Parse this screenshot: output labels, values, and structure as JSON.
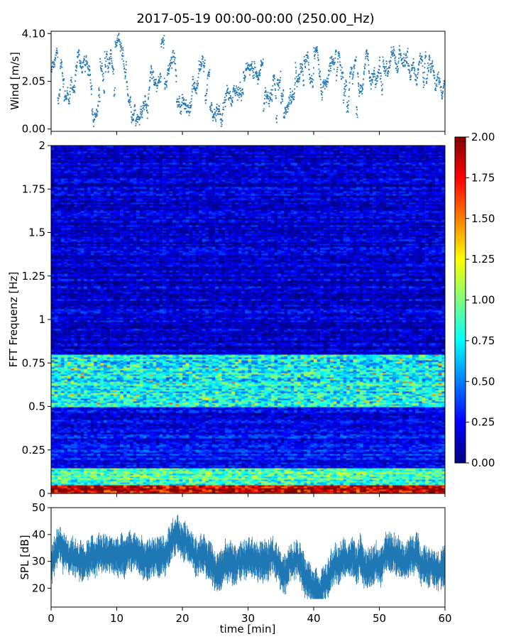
{
  "title": "2017-05-19 00:00-00:00 (250.00_Hz)",
  "chart_data": [
    {
      "type": "scatter",
      "name": "wind-panel",
      "ylabel": "Wind [m/s]",
      "xlim": [
        0,
        60
      ],
      "ylim": [
        -0.1,
        4.2
      ],
      "yticks": [
        0.0,
        2.05,
        4.1
      ],
      "ytick_labels": [
        "0.00",
        "2.05",
        "4.10"
      ],
      "x_unit": "min",
      "samples": 1800,
      "y_range": [
        0.0,
        4.1
      ],
      "series_color": "#1f77b4"
    },
    {
      "type": "heatmap",
      "name": "spectrogram-panel",
      "ylabel": "FFT Frequenz [Hz]",
      "xlim": [
        0,
        60
      ],
      "ylim": [
        0,
        2
      ],
      "yticks": [
        0,
        0.25,
        0.5,
        0.75,
        1,
        1.25,
        1.5,
        1.75,
        2
      ],
      "ytick_labels": [
        "0",
        "0.25",
        "0.5",
        "0.75",
        "1",
        "1.25",
        "1.5",
        "1.75",
        "2"
      ],
      "colormap": "jet",
      "color_range": [
        0.0,
        2.0
      ],
      "colorbar_ticks": [
        "0.00",
        "0.25",
        "0.50",
        "0.75",
        "1.00",
        "1.25",
        "1.50",
        "1.75",
        "2.00"
      ],
      "features": [
        {
          "freq_range": [
            0.0,
            0.05
          ],
          "level": 1.8
        },
        {
          "freq_range": [
            0.05,
            0.15
          ],
          "level": 0.9
        },
        {
          "freq_range": [
            0.5,
            0.8
          ],
          "level": 0.75
        },
        {
          "freq_range": [
            1.0,
            2.0
          ],
          "level": 0.15
        }
      ]
    },
    {
      "type": "area",
      "name": "spl-panel",
      "ylabel": "SPL [dB]",
      "xlabel": "time [min]",
      "xlim": [
        0,
        60
      ],
      "ylim": [
        13,
        50
      ],
      "yticks": [
        20,
        30,
        40,
        50
      ],
      "ytick_labels": [
        "20",
        "30",
        "40",
        "50"
      ],
      "xticks": [
        0,
        10,
        20,
        30,
        40,
        50,
        60
      ],
      "xtick_labels": [
        "0",
        "10",
        "20",
        "30",
        "40",
        "50",
        "60"
      ],
      "y_range": [
        16,
        48
      ],
      "series_color": "#1f77b4"
    }
  ]
}
